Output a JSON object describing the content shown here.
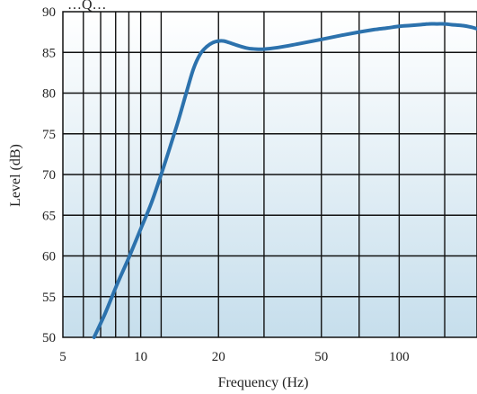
{
  "chart_data": {
    "type": "line",
    "title": "…Q…",
    "xlabel": "Frequency (Hz)",
    "ylabel": "Level (dB)",
    "x_scale": "log",
    "xlim": [
      5,
      200
    ],
    "ylim": [
      50,
      90
    ],
    "grid": true,
    "x_tick_labels": [
      "5",
      "10",
      "20",
      "50",
      "100"
    ],
    "x_tick_values": [
      5,
      10,
      20,
      50,
      100
    ],
    "y_tick_labels": [
      "50",
      "55",
      "60",
      "65",
      "70",
      "75",
      "80",
      "85",
      "90"
    ],
    "y_tick_values": [
      50,
      55,
      60,
      65,
      70,
      75,
      80,
      85,
      90
    ],
    "x_gridlines": [
      6,
      7,
      8,
      9,
      10,
      12,
      20,
      30,
      50,
      70,
      100,
      150
    ],
    "colors": {
      "line": "#2c72ad",
      "bg_top": "#ffffff",
      "bg_bottom": "#c6deec",
      "grid": "#111111"
    },
    "series": [
      {
        "x": [
          6.6,
          7.3,
          8.1,
          9,
          10,
          11,
          12,
          13,
          14,
          15,
          16,
          17,
          18,
          19,
          20,
          21,
          22,
          24,
          26,
          28,
          30,
          34,
          40,
          50,
          60,
          70,
          80,
          90,
          100,
          110,
          120,
          130,
          140,
          150,
          160,
          175,
          190,
          200
        ],
        "y": [
          50,
          53,
          56.5,
          59.8,
          63.3,
          66.5,
          70,
          73.4,
          76.7,
          80,
          83,
          84.8,
          85.7,
          86.2,
          86.4,
          86.4,
          86.2,
          85.8,
          85.5,
          85.4,
          85.4,
          85.6,
          86,
          86.6,
          87.1,
          87.5,
          87.8,
          88,
          88.2,
          88.3,
          88.4,
          88.5,
          88.5,
          88.5,
          88.4,
          88.3,
          88.1,
          87.9
        ]
      }
    ]
  }
}
